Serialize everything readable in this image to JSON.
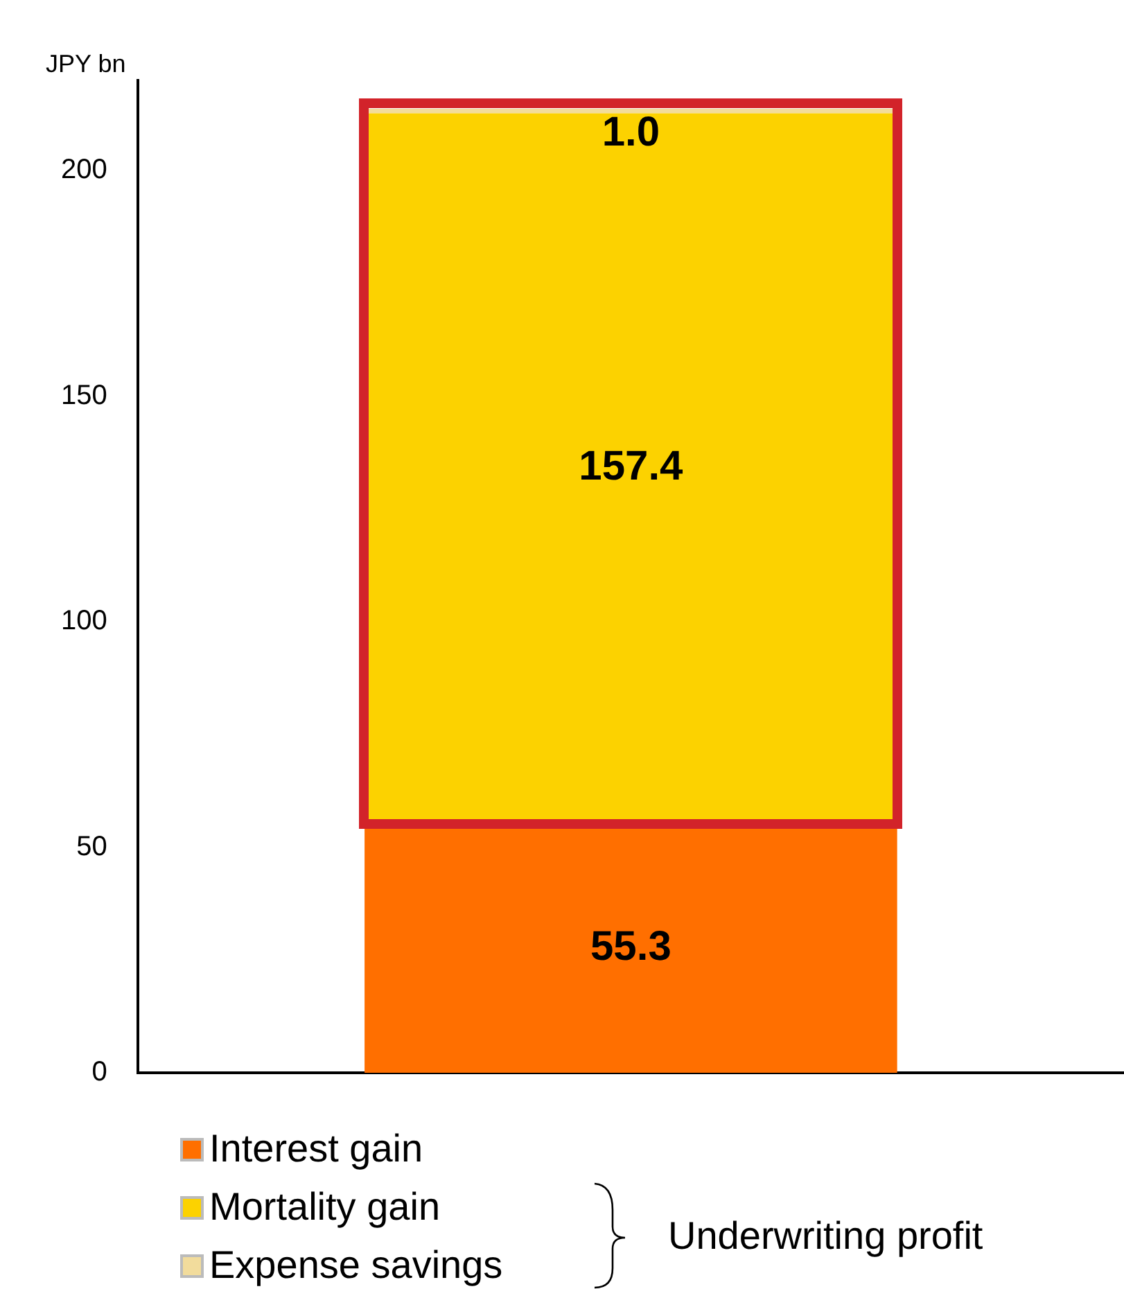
{
  "chart_data": {
    "type": "bar",
    "stacked": true,
    "ylabel": "JPY bn",
    "categories": [
      null
    ],
    "series": [
      {
        "name": "Interest gain",
        "color": "#ff6f00",
        "values": [
          55.3
        ],
        "value_labels": [
          "55.3"
        ]
      },
      {
        "name": "Mortality gain",
        "color": "#fcd200",
        "values": [
          157.4
        ],
        "value_labels": [
          "157.4"
        ]
      },
      {
        "name": "Expense savings",
        "color": "#f2dc9c",
        "values": [
          1.0
        ],
        "value_labels": [
          "1.0"
        ]
      }
    ],
    "ylim": [
      0,
      220
    ],
    "yticks": [
      0,
      50,
      100,
      150,
      200
    ],
    "grid": false,
    "legend": "bottom",
    "annotations": [
      "Underwriting profit"
    ]
  }
}
